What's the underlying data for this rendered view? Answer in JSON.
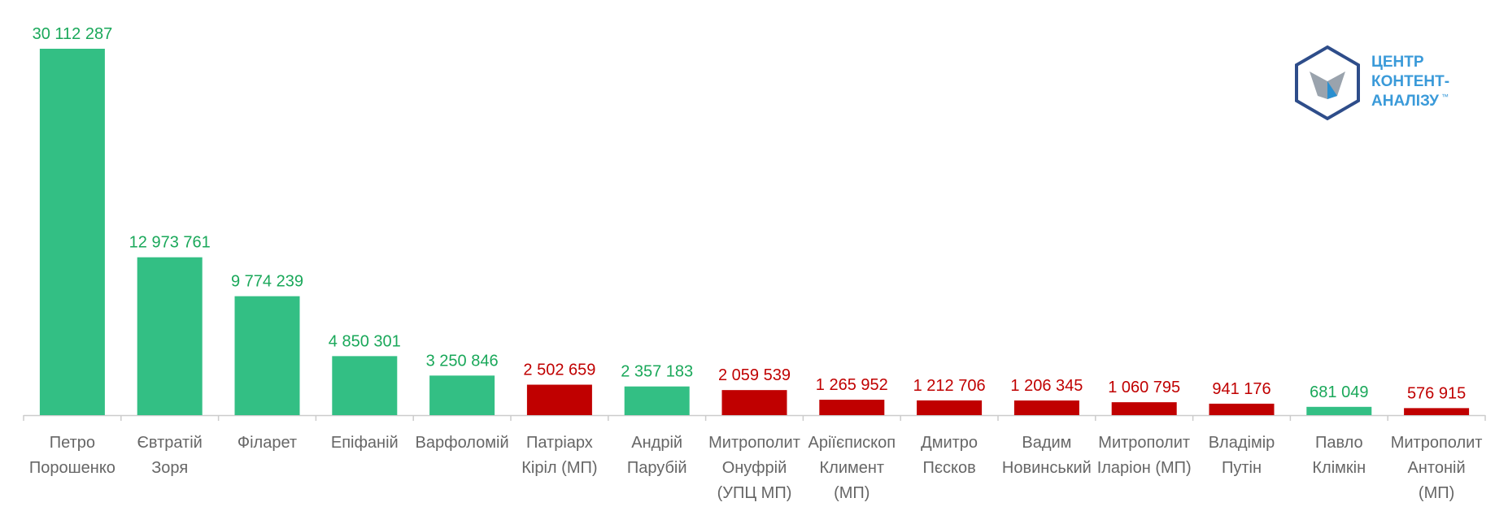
{
  "chart_data": {
    "type": "bar",
    "categories": [
      "Петро\nПорошенко",
      "Євтратій\nЗоря",
      "Філарет",
      "Епіфаній",
      "Варфоломій",
      "Патріарх\nКіріл (МП)",
      "Андрій\nПарубій",
      "Митрополит\nОнуфрій\n(УПЦ МП)",
      "Аріїєпископ\nКлимент\n(МП)",
      "Дмитро\nПєсков",
      "Вадим\nНовинський",
      "Митрополит\nІларіон (МП)",
      "Владімір\nПутін",
      "Павло\nКлімкін",
      "Митрополит\nАнтоній\n(МП)"
    ],
    "values": [
      30112287,
      12973761,
      9774239,
      4850301,
      3250846,
      2502659,
      2357183,
      2059539,
      1265952,
      1212706,
      1206345,
      1060795,
      941176,
      681049,
      576915
    ],
    "value_labels": [
      "30 112 287",
      "12 973 761",
      "9 774 239",
      "4 850 301",
      "3 250 846",
      "2 502 659",
      "2 357 183",
      "2 059 539",
      "1 265 952",
      "1 212 706",
      "1 206 345",
      "1 060 795",
      "941 176",
      "681 049",
      "576 915"
    ],
    "colors": [
      "#33bf84",
      "#33bf84",
      "#33bf84",
      "#33bf84",
      "#33bf84",
      "#c00000",
      "#33bf84",
      "#c00000",
      "#c00000",
      "#c00000",
      "#c00000",
      "#c00000",
      "#c00000",
      "#33bf84",
      "#c00000"
    ],
    "label_colors": [
      "#1aa85a",
      "#1aa85a",
      "#1aa85a",
      "#1aa85a",
      "#1aa85a",
      "#c00000",
      "#1aa85a",
      "#c00000",
      "#c00000",
      "#c00000",
      "#c00000",
      "#c00000",
      "#c00000",
      "#1aa85a",
      "#c00000"
    ]
  },
  "logo": {
    "lines": [
      "ЦЕНТР",
      "КОНТЕНТ-",
      "АНАЛІЗУ"
    ],
    "mark": "™"
  }
}
